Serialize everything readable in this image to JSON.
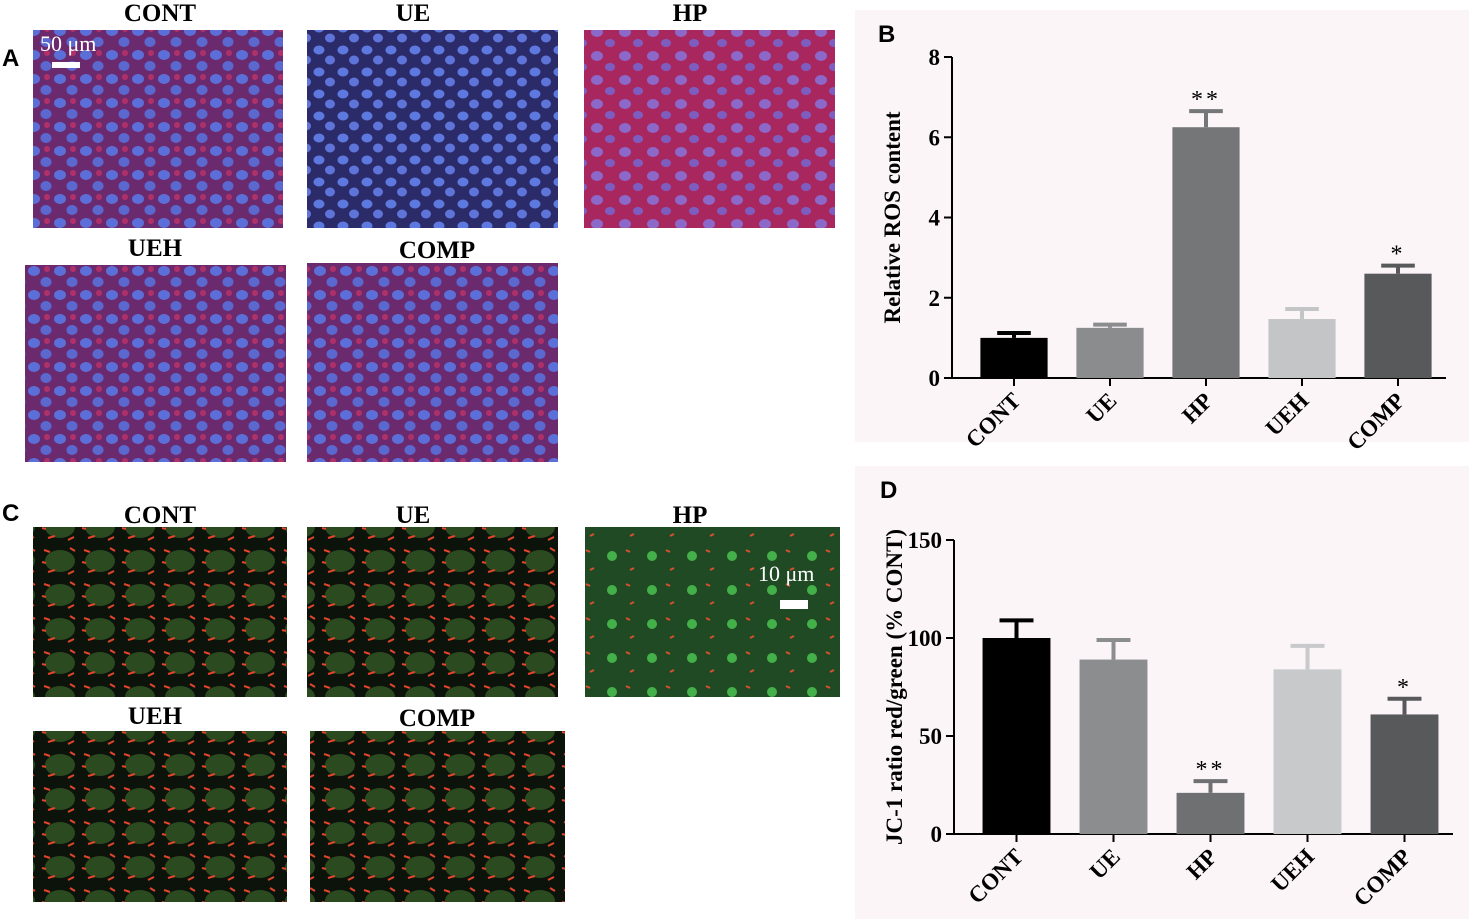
{
  "panels": {
    "a": {
      "letter": "A",
      "images": [
        "CONT",
        "UE",
        "HP",
        "UEH",
        "COMP"
      ],
      "scale_bar": "50 μm"
    },
    "c": {
      "letter": "C",
      "images": [
        "CONT",
        "UE",
        "HP",
        "UEH",
        "COMP"
      ],
      "scale_bar": "10 μm"
    }
  },
  "chart_data": [
    {
      "type": "bar",
      "letter": "B",
      "ylabel": "Relative ROS content",
      "categories": [
        "CONT",
        "UE",
        "HP",
        "UEH",
        "COMP"
      ],
      "values": [
        1.0,
        1.25,
        6.25,
        1.47,
        2.6
      ],
      "errors": [
        0.12,
        0.08,
        0.4,
        0.25,
        0.2
      ],
      "colors": [
        "#000000",
        "#8b8c8e",
        "#747678",
        "#c4c5c7",
        "#58595b"
      ],
      "significance": [
        null,
        null,
        "**",
        null,
        "*"
      ],
      "ylim": [
        0,
        8
      ],
      "yticks": [
        0,
        2,
        4,
        6,
        8
      ]
    },
    {
      "type": "bar",
      "letter": "D",
      "ylabel": "JC-1 ratio red/green (% CONT)",
      "categories": [
        "CONT",
        "UE",
        "HP",
        "UEH",
        "COMP"
      ],
      "values": [
        100,
        89,
        21,
        84,
        61
      ],
      "errors": [
        9,
        10,
        6,
        12,
        8
      ],
      "colors": [
        "#000000",
        "#8c8d8f",
        "#6e7072",
        "#c8c9cb",
        "#58595b"
      ],
      "significance": [
        null,
        null,
        "**",
        null,
        "*"
      ],
      "ylim": [
        0,
        150
      ],
      "yticks": [
        0,
        50,
        100,
        150
      ]
    }
  ]
}
